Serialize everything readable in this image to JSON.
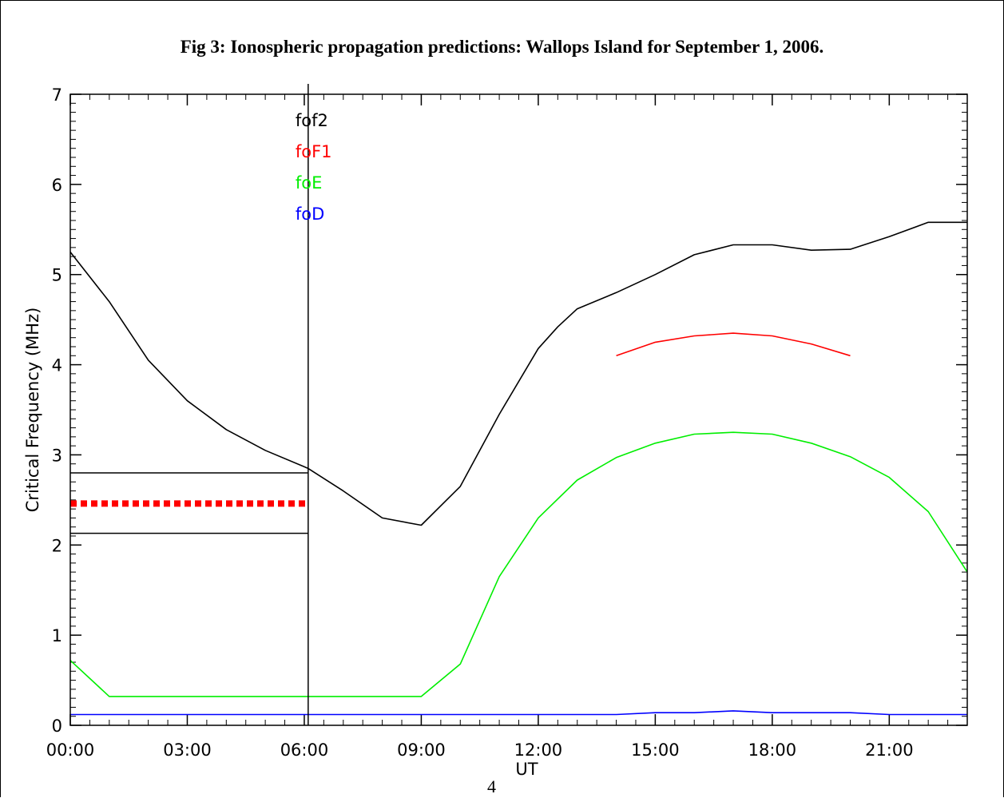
{
  "figure": {
    "title": "Fig 3: Ionospheric propagation predictions: Wallops Island for September 1, 2006.",
    "page_number": "4"
  },
  "chart_data": {
    "type": "line",
    "xlabel": "UT",
    "ylabel": "Critical Frequency (MHz)",
    "xlim": [
      0,
      23
    ],
    "ylim": [
      0,
      7
    ],
    "x_ticks": [
      0,
      3,
      6,
      9,
      12,
      15,
      18,
      21
    ],
    "x_tick_labels": [
      "00:00",
      "03:00",
      "06:00",
      "09:00",
      "12:00",
      "15:00",
      "18:00",
      "21:00"
    ],
    "y_ticks": [
      0,
      1,
      2,
      3,
      4,
      5,
      6,
      7
    ],
    "y_tick_labels": [
      "0",
      "1",
      "2",
      "3",
      "4",
      "5",
      "6",
      "7"
    ],
    "legend_placement": "top, beside vertical marker",
    "series": [
      {
        "name": "fof2",
        "color": "#000000",
        "x": [
          0,
          1,
          2,
          3,
          4,
          5,
          6.1,
          7,
          8,
          9,
          10,
          11,
          12,
          12.5,
          13,
          14,
          15,
          16,
          17,
          18,
          19,
          20,
          21,
          22,
          23
        ],
        "y": [
          5.25,
          4.7,
          4.05,
          3.6,
          3.28,
          3.05,
          2.85,
          2.6,
          2.3,
          2.22,
          2.65,
          3.45,
          4.18,
          4.42,
          4.62,
          4.8,
          5.0,
          5.22,
          5.33,
          5.33,
          5.27,
          5.28,
          5.42,
          5.58,
          5.58
        ]
      },
      {
        "name": "foF1",
        "color": "#ff0000",
        "x": [
          14,
          15,
          16,
          17,
          18,
          19,
          20
        ],
        "y": [
          4.1,
          4.25,
          4.32,
          4.35,
          4.32,
          4.23,
          4.1
        ]
      },
      {
        "name": "foE",
        "color": "#00ee00",
        "x": [
          0,
          1,
          2,
          3,
          4,
          5,
          6,
          7,
          8,
          9,
          10,
          11,
          12,
          13,
          14,
          15,
          16,
          17,
          18,
          19,
          20,
          21,
          22,
          23
        ],
        "y": [
          0.72,
          0.32,
          0.32,
          0.32,
          0.32,
          0.32,
          0.32,
          0.32,
          0.32,
          0.32,
          0.68,
          1.65,
          2.3,
          2.72,
          2.97,
          3.13,
          3.23,
          3.25,
          3.23,
          3.13,
          2.98,
          2.75,
          2.37,
          1.7
        ]
      },
      {
        "name": "foD",
        "color": "#0000ff",
        "x": [
          0,
          14,
          15,
          16,
          17,
          18,
          19,
          20,
          21,
          23
        ],
        "y": [
          0.12,
          0.12,
          0.14,
          0.14,
          0.16,
          0.14,
          0.14,
          0.14,
          0.12,
          0.12
        ]
      }
    ],
    "annotations": {
      "marker_time": 6.1,
      "levels": [
        {
          "y": 2.8,
          "color": "#000000",
          "style": "solid",
          "x_range": [
            0,
            6.1
          ]
        },
        {
          "y": 2.46,
          "color": "#ff0000",
          "style": "dotted",
          "x_range": [
            0,
            6.1
          ]
        },
        {
          "y": 2.13,
          "color": "#000000",
          "style": "solid",
          "x_range": [
            0,
            6.1
          ]
        }
      ]
    }
  }
}
